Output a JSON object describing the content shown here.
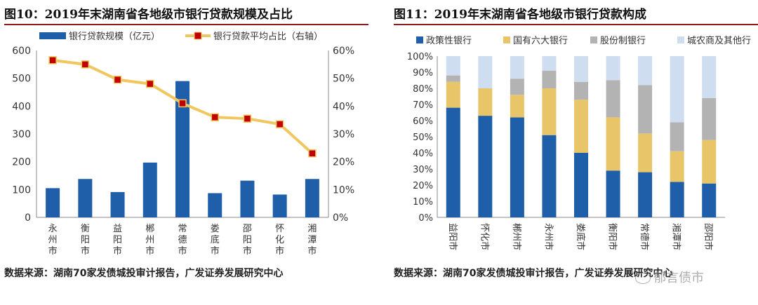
{
  "left": {
    "title": "图10：2019年末湖南省各地级市银行贷款规模及占比",
    "source": "数据来源：湖南70家发债城投审计报告，广发证券发展研究中心"
  },
  "right": {
    "title": "图11：2019年末湖南省各地级市银行贷款构成",
    "source": "数据来源：湖南70家发债城投审计报告，广发证券发展研究中心"
  },
  "watermark": "郁言债市",
  "chart_data": [
    {
      "type": "bar",
      "categories": [
        "永州市",
        "衡阳市",
        "益阳市",
        "郴州市",
        "常德市",
        "娄底市",
        "邵阳市",
        "怀化市",
        "湘潭市"
      ],
      "series": [
        {
          "name": "银行贷款规模（亿元）",
          "type": "bar",
          "axis": "left",
          "color": "#1f5ea8",
          "values": [
            105,
            138,
            91,
            197,
            490,
            87,
            132,
            82,
            138
          ]
        },
        {
          "name": "银行贷款平均占比（右轴）",
          "type": "line",
          "axis": "right",
          "color": "#f0c75e",
          "marker_color": "#c00000",
          "values": [
            56.5,
            55.0,
            49.5,
            48.0,
            41.0,
            36.0,
            35.5,
            33.5,
            23.0
          ]
        }
      ],
      "yticks": [
        "0",
        "100",
        "200",
        "300",
        "400",
        "500",
        "600"
      ],
      "y2ticks": [
        "0%",
        "10%",
        "20%",
        "30%",
        "40%",
        "50%",
        "60%"
      ],
      "ylim": [
        0,
        600
      ],
      "y2lim": [
        0,
        60
      ]
    },
    {
      "type": "bar",
      "stacked": true,
      "categories": [
        "益阳市",
        "怀化市",
        "郴州市",
        "永州市",
        "娄底市",
        "衡阳市",
        "常德市",
        "湘潭市",
        "邵阳市"
      ],
      "series": [
        {
          "name": "政策性银行",
          "color": "#1f5ea8",
          "values": [
            68,
            63,
            62,
            51,
            40,
            29,
            28,
            22,
            21
          ]
        },
        {
          "name": "国有六大银行",
          "color": "#e9c56a",
          "values": [
            16,
            17,
            14,
            29,
            33,
            33,
            24,
            19,
            27
          ]
        },
        {
          "name": "股份制银行",
          "color": "#b3b3b3",
          "values": [
            4,
            0,
            10,
            11,
            11,
            23,
            30,
            18,
            26
          ]
        },
        {
          "name": "城农商及其他行",
          "color": "#cfddf0",
          "values": [
            12,
            20,
            14,
            9,
            16,
            15,
            18,
            41,
            26
          ]
        }
      ],
      "yticks": [
        "0%",
        "10%",
        "20%",
        "30%",
        "40%",
        "50%",
        "60%",
        "70%",
        "80%",
        "90%",
        "100%"
      ],
      "ylim": [
        0,
        100
      ]
    }
  ]
}
